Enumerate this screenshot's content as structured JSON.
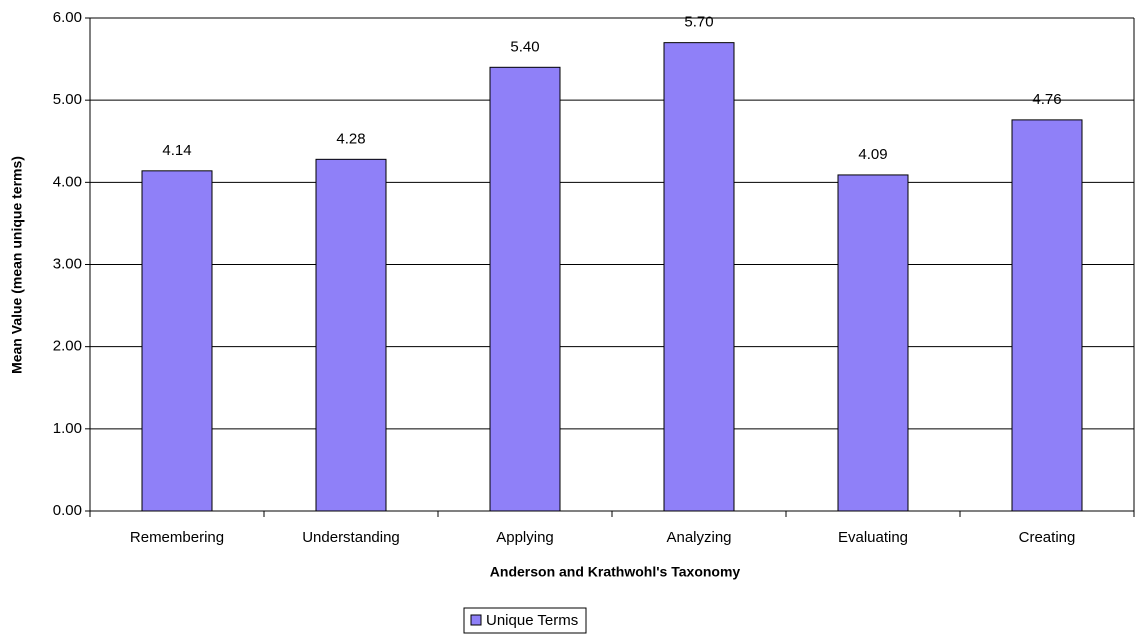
{
  "chart_data": {
    "type": "bar",
    "x_label": "Anderson and Krathwohl's Taxonomy",
    "y_label": "Mean Value (mean unique terms)",
    "categories": [
      "Remembering",
      "Understanding",
      "Applying",
      "Analyzing",
      "Evaluating",
      "Creating"
    ],
    "series": [
      {
        "name": "Unique Terms",
        "color": "#8f80f8",
        "values": [
          4.14,
          4.28,
          5.4,
          5.7,
          4.09,
          4.76
        ],
        "value_labels": [
          "4.14",
          "4.28",
          "5.40",
          "5.70",
          "4.09",
          "4.76"
        ]
      }
    ],
    "ylim": [
      0,
      6
    ],
    "yticks": [
      {
        "value": 0,
        "label": "0.00"
      },
      {
        "value": 1,
        "label": "1.00"
      },
      {
        "value": 2,
        "label": "2.00"
      },
      {
        "value": 3,
        "label": "3.00"
      },
      {
        "value": 4,
        "label": "4.00"
      },
      {
        "value": 5,
        "label": "5.00"
      },
      {
        "value": 6,
        "label": "6.00"
      }
    ],
    "grid": true,
    "legend": "bottom"
  }
}
